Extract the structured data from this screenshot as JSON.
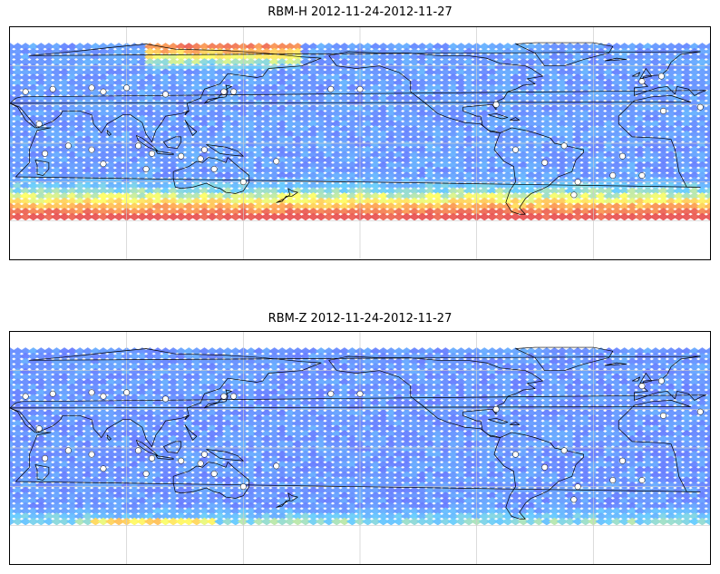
{
  "panels": [
    {
      "title": "RBM-H 2012-11-24-2012-11-27",
      "field": "rbm-h"
    },
    {
      "title": "RBM-Z 2012-11-24-2012-11-27",
      "field": "rbm-z"
    }
  ],
  "colors": {
    "low": "#6666ff",
    "mid_low": "#66ccff",
    "mid": "#ffff66",
    "mid_high": "#ffaa55",
    "high": "#e85555",
    "coast": "#000000",
    "grid": "#cccccc",
    "station": "#ffffff"
  },
  "map": {
    "projection": "equirectangular",
    "longitude_range": [
      30,
      390
    ],
    "latitude_range": [
      -90,
      90
    ],
    "data_latitude_range": [
      -60,
      75
    ],
    "gridlines": true
  }
}
